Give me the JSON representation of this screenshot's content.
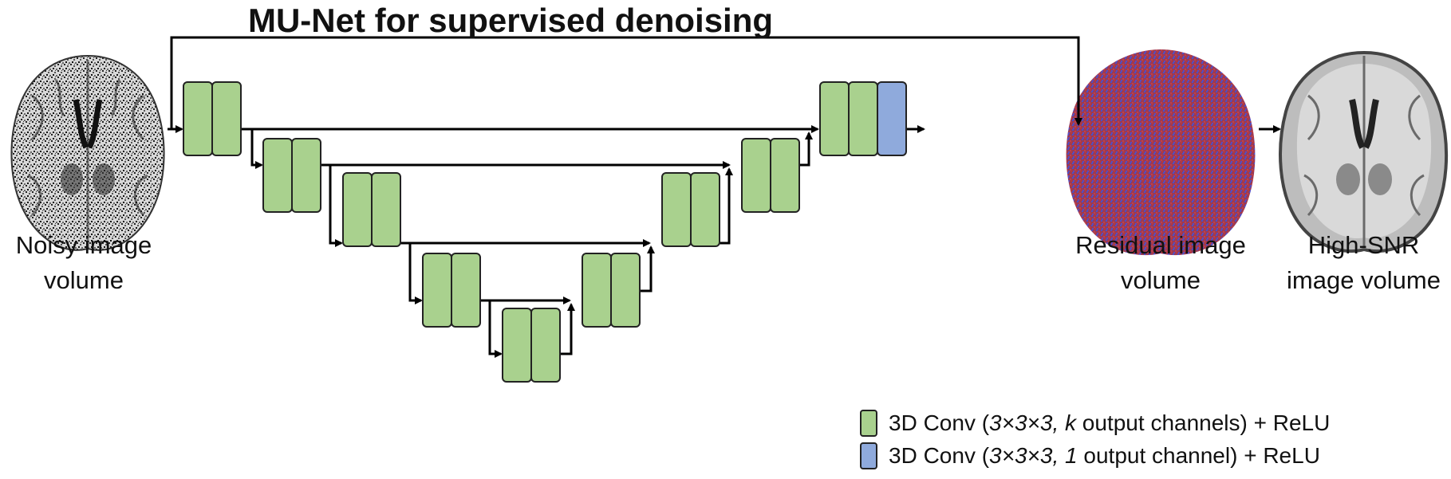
{
  "title": "MU-Net for supervised denoising",
  "captions": {
    "input_line1": "Noisy image",
    "input_line2": "volume",
    "residual_line1": "Residual image",
    "residual_line2": "volume",
    "output_line1": "High-SNR",
    "output_line2": "image volume"
  },
  "legend": {
    "relu_conv": {
      "prefix": "3D Conv (",
      "kernel": "3×3×3,",
      "channels": "k",
      "suffix": " output channels) + ReLU"
    },
    "final_conv": {
      "prefix": "3D Conv (",
      "kernel": "3×3×3,",
      "channels": "1",
      "suffix": " output channel) + ReLU"
    }
  },
  "colors": {
    "conv_block": "#a9d18e",
    "final_block": "#8faadc",
    "residual_red": "#b03a4a",
    "residual_blue": "#4a55c8"
  },
  "icons": {
    "input_image": "noisy-brain-slice",
    "residual_image": "residual-noise-brain",
    "output_image": "clean-brain-slice"
  }
}
